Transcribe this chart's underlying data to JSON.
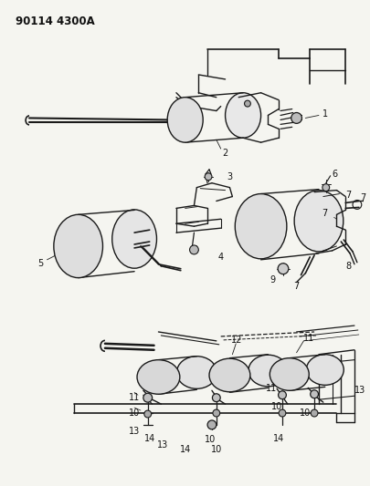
{
  "title_text": "90114 4300A",
  "bg_color": "#f5f5f0",
  "fig_width": 4.05,
  "fig_height": 5.33,
  "line_color": "#1a1a1a",
  "label_color": "#111111"
}
